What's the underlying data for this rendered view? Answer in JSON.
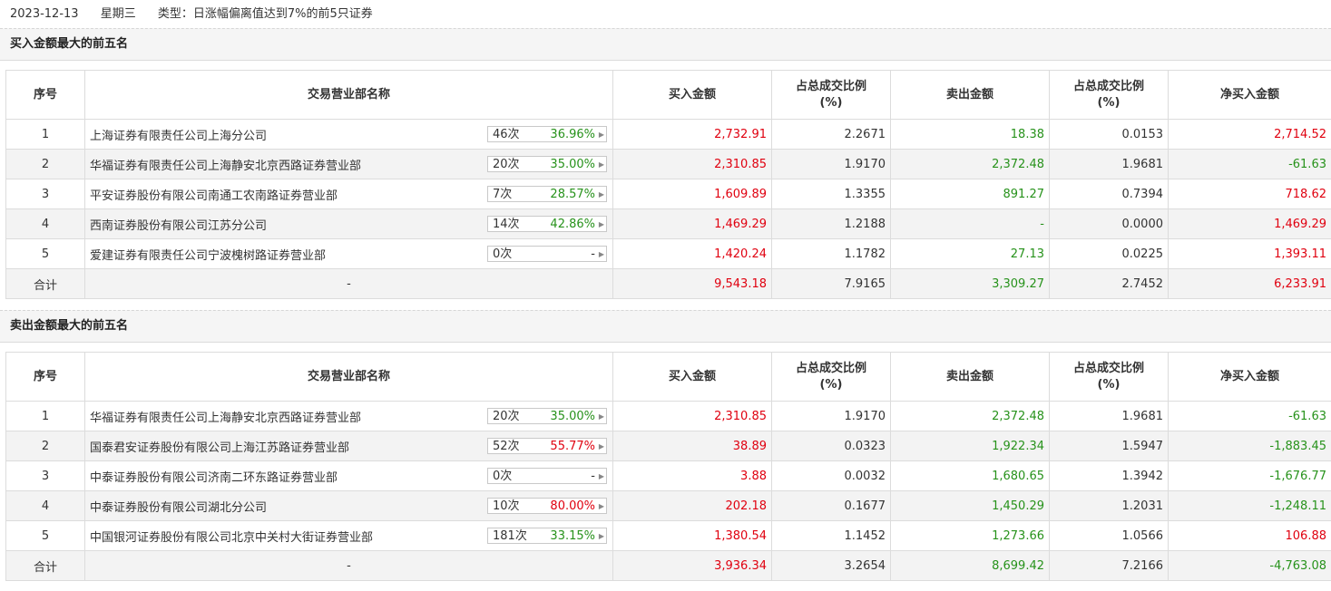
{
  "header": {
    "date": "2023-12-13",
    "weekday": "星期三",
    "type": "类型：日涨幅偏离值达到7%的前5只证券"
  },
  "columns": [
    "序号",
    "交易营业部名称",
    "买入金额",
    "占总成交比例(%)",
    "卖出金额",
    "占总成交比例(%)",
    "净买入金额"
  ],
  "col_pct_line1": "占总成交比例",
  "col_pct_line2": "(%)",
  "buy_section": {
    "title": "买入金额最大的前五名",
    "rows": [
      {
        "idx": "1",
        "name": "上海证券有限责任公司上海分公司",
        "count": "46次",
        "rate": "36.96%",
        "rate_color": "green",
        "buy": "2,732.91",
        "buy_pct": "2.2671",
        "sell": "18.38",
        "sell_pct": "0.0153",
        "net": "2,714.52",
        "net_color": "red"
      },
      {
        "idx": "2",
        "name": "华福证券有限责任公司上海静安北京西路证券营业部",
        "count": "20次",
        "rate": "35.00%",
        "rate_color": "green",
        "buy": "2,310.85",
        "buy_pct": "1.9170",
        "sell": "2,372.48",
        "sell_pct": "1.9681",
        "net": "-61.63",
        "net_color": "green"
      },
      {
        "idx": "3",
        "name": "平安证券股份有限公司南通工农南路证券营业部",
        "count": "7次",
        "rate": "28.57%",
        "rate_color": "green",
        "buy": "1,609.89",
        "buy_pct": "1.3355",
        "sell": "891.27",
        "sell_pct": "0.7394",
        "net": "718.62",
        "net_color": "red"
      },
      {
        "idx": "4",
        "name": "西南证券股份有限公司江苏分公司",
        "count": "14次",
        "rate": "42.86%",
        "rate_color": "green",
        "buy": "1,469.29",
        "buy_pct": "1.2188",
        "sell": "-",
        "sell_pct": "0.0000",
        "net": "1,469.29",
        "net_color": "red"
      },
      {
        "idx": "5",
        "name": "爱建证券有限责任公司宁波槐树路证券营业部",
        "count": "0次",
        "rate": "-",
        "rate_color": "dark",
        "buy": "1,420.24",
        "buy_pct": "1.1782",
        "sell": "27.13",
        "sell_pct": "0.0225",
        "net": "1,393.11",
        "net_color": "red"
      }
    ],
    "total": {
      "label": "合计",
      "name": "-",
      "buy": "9,543.18",
      "buy_pct": "7.9165",
      "sell": "3,309.27",
      "sell_pct": "2.7452",
      "net": "6,233.91",
      "net_color": "red"
    }
  },
  "sell_section": {
    "title": "卖出金额最大的前五名",
    "rows": [
      {
        "idx": "1",
        "name": "华福证券有限责任公司上海静安北京西路证券营业部",
        "count": "20次",
        "rate": "35.00%",
        "rate_color": "green",
        "buy": "2,310.85",
        "buy_pct": "1.9170",
        "sell": "2,372.48",
        "sell_pct": "1.9681",
        "net": "-61.63",
        "net_color": "green"
      },
      {
        "idx": "2",
        "name": "国泰君安证券股份有限公司上海江苏路证券营业部",
        "count": "52次",
        "rate": "55.77%",
        "rate_color": "red",
        "buy": "38.89",
        "buy_pct": "0.0323",
        "sell": "1,922.34",
        "sell_pct": "1.5947",
        "net": "-1,883.45",
        "net_color": "green"
      },
      {
        "idx": "3",
        "name": "中泰证券股份有限公司济南二环东路证券营业部",
        "count": "0次",
        "rate": "-",
        "rate_color": "dark",
        "buy": "3.88",
        "buy_pct": "0.0032",
        "sell": "1,680.65",
        "sell_pct": "1.3942",
        "net": "-1,676.77",
        "net_color": "green"
      },
      {
        "idx": "4",
        "name": "中泰证券股份有限公司湖北分公司",
        "count": "10次",
        "rate": "80.00%",
        "rate_color": "red",
        "buy": "202.18",
        "buy_pct": "0.1677",
        "sell": "1,450.29",
        "sell_pct": "1.2031",
        "net": "-1,248.11",
        "net_color": "green"
      },
      {
        "idx": "5",
        "name": "中国银河证券股份有限公司北京中关村大街证券营业部",
        "count": "181次",
        "rate": "33.15%",
        "rate_color": "green",
        "buy": "1,380.54",
        "buy_pct": "1.1452",
        "sell": "1,273.66",
        "sell_pct": "1.0566",
        "net": "106.88",
        "net_color": "red"
      }
    ],
    "total": {
      "label": "合计",
      "name": "-",
      "buy": "3,936.34",
      "buy_pct": "3.2654",
      "sell": "8,699.42",
      "sell_pct": "7.2166",
      "net": "-4,763.08",
      "net_color": "green"
    }
  },
  "colors": {
    "red": "#e0000f",
    "green": "#27921b",
    "row_alt": "#f3f3f3",
    "border": "#dcdcdc"
  },
  "icons": {
    "stat_arrow": "caret-right-icon"
  }
}
